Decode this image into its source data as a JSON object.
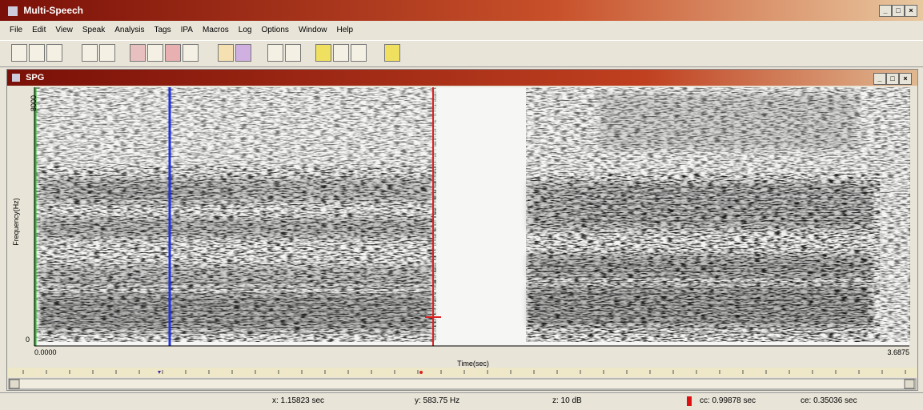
{
  "window": {
    "title": "Multi-Speech"
  },
  "menu": [
    "File",
    "Edit",
    "View",
    "Speak",
    "Analysis",
    "Tags",
    "IPA",
    "Macros",
    "Log",
    "Options",
    "Window",
    "Help"
  ],
  "child_window": {
    "title": "SPG",
    "y_axis_label": "Frequency(Hz)",
    "y_max": "8000",
    "y_min": "0",
    "x_start": "0.0000",
    "x_end": "3.6875",
    "x_axis_label": "Time(sec)"
  },
  "status_bar": {
    "x": "x: 1.15823 sec",
    "y": "y: 583.75 Hz",
    "z": "z: 10 dB",
    "cc": "cc: 0.99878 sec",
    "ce": "ce: 0.35036 sec"
  }
}
